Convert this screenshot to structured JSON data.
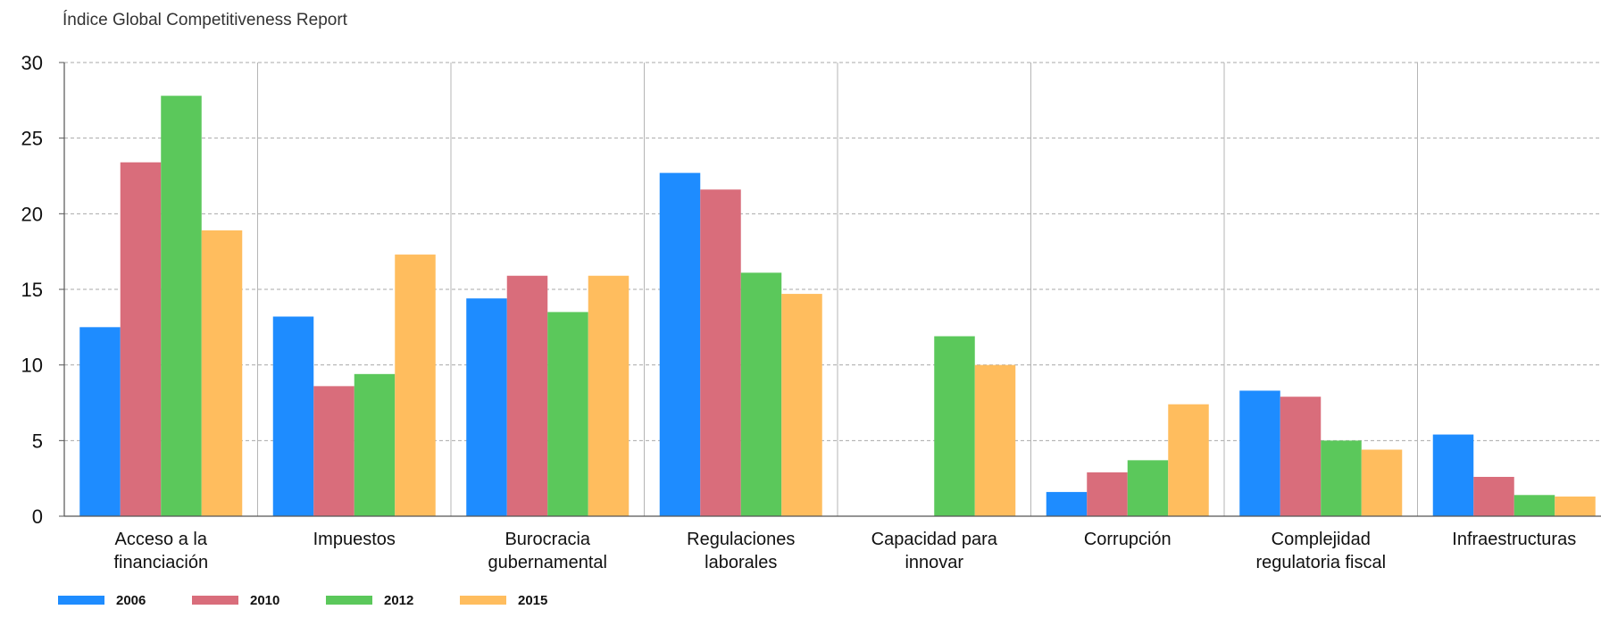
{
  "chart_data": {
    "type": "bar",
    "title": "Índice Global Competitiveness Report",
    "xlabel": "",
    "ylabel": "",
    "ylim": [
      0,
      30
    ],
    "yticks": [
      0,
      5,
      10,
      15,
      20,
      25,
      30
    ],
    "grid": true,
    "legend_position": "bottom-left",
    "categories": [
      [
        "Acceso a la",
        "financiación"
      ],
      [
        "Impuestos"
      ],
      [
        "Burocracia",
        "gubernamental"
      ],
      [
        "Regulaciones",
        "laborales"
      ],
      [
        "Capacidad para",
        "innovar"
      ],
      [
        "Corrupción"
      ],
      [
        "Complejidad",
        "regulatoria fiscal"
      ],
      [
        "Infraestructuras"
      ]
    ],
    "series": [
      {
        "name": "2006",
        "color": "#1e8cff",
        "values": [
          12.5,
          13.2,
          14.4,
          22.7,
          null,
          1.6,
          8.3,
          5.4
        ]
      },
      {
        "name": "2010",
        "color": "#d96d7b",
        "values": [
          23.4,
          8.6,
          15.9,
          21.6,
          null,
          2.9,
          7.9,
          2.6
        ]
      },
      {
        "name": "2012",
        "color": "#5bc85b",
        "values": [
          27.8,
          9.4,
          13.5,
          16.1,
          11.9,
          3.7,
          5.0,
          1.4
        ]
      },
      {
        "name": "2015",
        "color": "#ffbd5e",
        "values": [
          18.9,
          17.3,
          15.9,
          14.7,
          10.0,
          7.4,
          4.4,
          1.3
        ]
      }
    ]
  }
}
